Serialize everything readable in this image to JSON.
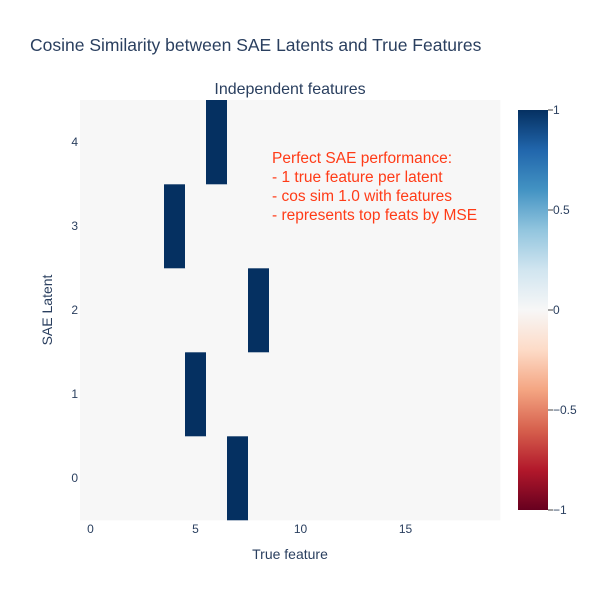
{
  "title": "Cosine Similarity between SAE Latents and True Features",
  "chart_data": {
    "type": "heatmap",
    "subtitle": "Independent features",
    "xlabel": "True feature",
    "ylabel": "SAE Latent",
    "x_ticks": [
      0,
      5,
      10,
      15
    ],
    "y_ticks": [
      0,
      1,
      2,
      3,
      4
    ],
    "n_features": 20,
    "n_latents": 5,
    "zmin": -1,
    "zmax": 1,
    "colorscale": "RdBu",
    "colorbar_ticks": [
      "1",
      "0.5",
      "0",
      "−0.5",
      "−1"
    ],
    "colorbar_tick_values": [
      1,
      0.5,
      0,
      -0.5,
      -1
    ],
    "matches": [
      {
        "latent": 0,
        "feature": 7,
        "value": 1.0
      },
      {
        "latent": 1,
        "feature": 5,
        "value": 1.0
      },
      {
        "latent": 2,
        "feature": 8,
        "value": 1.0
      },
      {
        "latent": 3,
        "feature": 4,
        "value": 1.0
      },
      {
        "latent": 4,
        "feature": 6,
        "value": 1.0
      }
    ],
    "off_diagonal_value": 0.0,
    "annotation": [
      "Perfect SAE performance:",
      "- 1 true feature per latent",
      "- cos sim 1.0 with features",
      "- represents top feats by MSE"
    ]
  }
}
